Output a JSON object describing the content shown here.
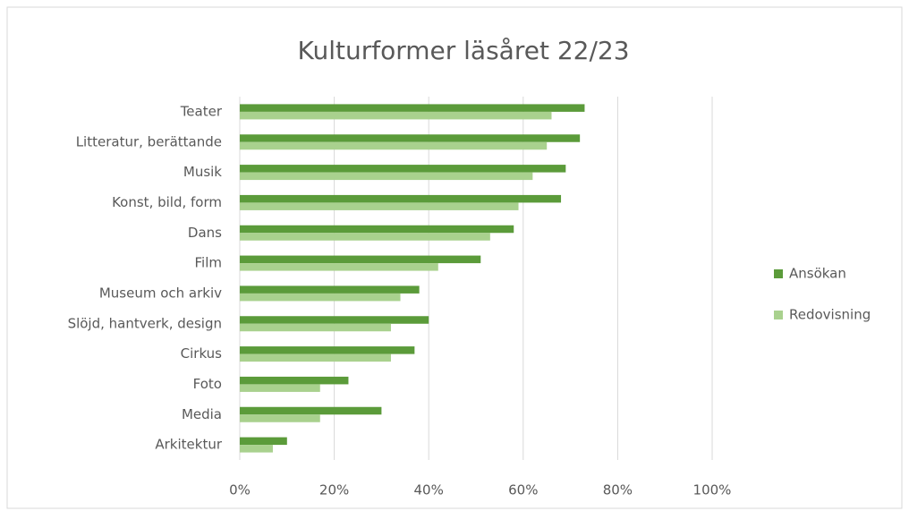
{
  "chart_data": {
    "type": "hbar",
    "title": "Kulturformer läsåret 22/23",
    "categories": [
      "Teater",
      "Litteratur, berättande",
      "Musik",
      "Konst, bild, form",
      "Dans",
      "Film",
      "Museum och arkiv",
      "Slöjd, hantverk, design",
      "Cirkus",
      "Foto",
      "Media",
      "Arkitektur"
    ],
    "series": [
      {
        "name": "Ansökan",
        "color": "#5b9b3a",
        "values": [
          73,
          72,
          69,
          68,
          58,
          51,
          38,
          40,
          37,
          23,
          30,
          10
        ]
      },
      {
        "name": "Redovisning",
        "color": "#a9d18e",
        "values": [
          66,
          65,
          62,
          59,
          53,
          42,
          34,
          32,
          32,
          17,
          17,
          7
        ]
      }
    ],
    "xlim": [
      0,
      100
    ],
    "xticks": [
      {
        "value": 0,
        "label": "0%"
      },
      {
        "value": 20,
        "label": "20%"
      },
      {
        "value": 40,
        "label": "40%"
      },
      {
        "value": 60,
        "label": "60%"
      },
      {
        "value": 80,
        "label": "80%"
      },
      {
        "value": 100,
        "label": "100%"
      }
    ],
    "grid": true,
    "legend": "right"
  }
}
